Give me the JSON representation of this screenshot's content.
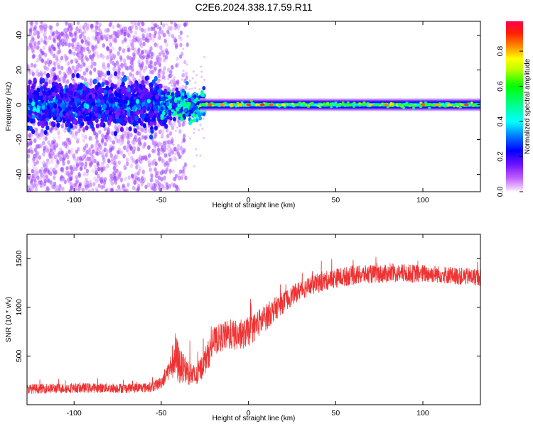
{
  "figure_title": "C2E6.2024.338.17.59.R11",
  "chart_data": [
    {
      "type": "heatmap",
      "xlabel": "Height of straight line (km)",
      "ylabel": "Frequency (Hz)",
      "xlim": [
        -127,
        133
      ],
      "ylim": [
        -50,
        48
      ],
      "x_ticks": [
        -100,
        -50,
        0,
        50,
        100
      ],
      "y_ticks": [
        -40,
        -20,
        0,
        20,
        40
      ],
      "grid": false,
      "colorbar": {
        "label": "Normalized spectral amplitude",
        "range": [
          0.0,
          0.97
        ],
        "ticks": [
          0.0,
          0.2,
          0.4,
          0.6,
          0.8
        ],
        "colormap": [
          "#ff00ff",
          "#8000ff",
          "#0000ff",
          "#00ffff",
          "#00ff00",
          "#ffff00",
          "#ff8000",
          "#ff0000"
        ]
      },
      "regions": [
        {
          "x_range": [
            -127,
            -50
          ],
          "frequency_spread_hz": [
            -50,
            48
          ],
          "core_hz": [
            -12,
            12
          ],
          "amplitude": "low (0.05-0.25), scattered"
        },
        {
          "x_range": [
            -50,
            -25
          ],
          "frequency_spread_hz": [
            -30,
            20
          ],
          "core_hz": [
            -5,
            5
          ],
          "amplitude": "mixed, transition"
        },
        {
          "x_range": [
            -25,
            133
          ],
          "frequency_spread_hz": [
            -3,
            3
          ],
          "core_hz": [
            -1,
            1
          ],
          "amplitude": "high (0.5-0.95), narrow band near 0 Hz"
        }
      ]
    },
    {
      "type": "line",
      "xlabel": "Height of straight line (km)",
      "ylabel": "SNR (10 * v/v)",
      "xlim": [
        -127,
        133
      ],
      "ylim": [
        0,
        1750
      ],
      "x_ticks": [
        -100,
        -50,
        0,
        50,
        100
      ],
      "y_ticks": [
        500,
        1000,
        1500
      ],
      "grid": false,
      "series": [
        {
          "color": "#ee3333",
          "x": [
            -127,
            -120,
            -110,
            -100,
            -90,
            -80,
            -70,
            -60,
            -55,
            -50,
            -45,
            -42,
            -40,
            -38,
            -35,
            -32,
            -30,
            -27,
            -25,
            -22,
            -20,
            -15,
            -10,
            -5,
            0,
            5,
            10,
            15,
            20,
            25,
            30,
            40,
            50,
            60,
            70,
            80,
            90,
            100,
            110,
            120,
            133
          ],
          "center": [
            160,
            165,
            168,
            170,
            172,
            172,
            170,
            175,
            185,
            230,
            380,
            500,
            420,
            380,
            350,
            300,
            280,
            380,
            450,
            550,
            650,
            700,
            720,
            700,
            750,
            820,
            900,
            980,
            1050,
            1120,
            1180,
            1250,
            1300,
            1330,
            1340,
            1345,
            1350,
            1345,
            1340,
            1320,
            1310
          ],
          "spread": [
            100,
            100,
            100,
            100,
            100,
            100,
            100,
            100,
            110,
            130,
            220,
            500,
            450,
            300,
            280,
            250,
            230,
            260,
            280,
            300,
            280,
            300,
            320,
            300,
            300,
            300,
            280,
            240,
            220,
            200,
            200,
            200,
            200,
            200,
            190,
            190,
            190,
            190,
            180,
            180,
            180
          ]
        }
      ]
    }
  ]
}
